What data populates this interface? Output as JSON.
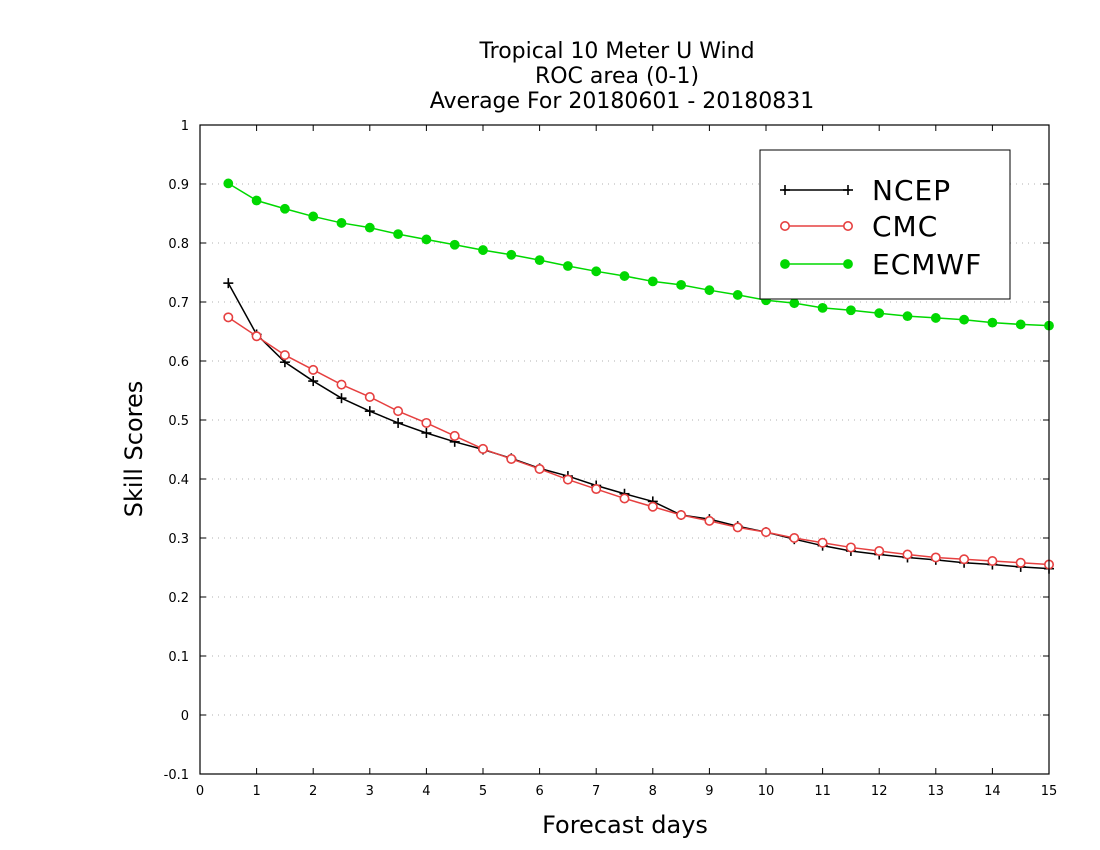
{
  "chart_data": {
    "type": "line",
    "title_lines": [
      "Tropical 10 Meter U Wind",
      "ROC area (0-1)",
      "Average For 20180601 - 20180831"
    ],
    "xlabel": "Forecast days",
    "ylabel": "Skill Scores",
    "xlim": [
      0,
      15
    ],
    "ylim": [
      -0.1,
      1
    ],
    "x_ticks": [
      0,
      1,
      2,
      3,
      4,
      5,
      6,
      7,
      8,
      9,
      10,
      11,
      12,
      13,
      14,
      15
    ],
    "y_ticks": [
      -0.1,
      0,
      0.1,
      0.2,
      0.3,
      0.4,
      0.5,
      0.6,
      0.7,
      0.8,
      0.9,
      1
    ],
    "x_tick_labels": [
      "0",
      "1",
      "2",
      "3",
      "4",
      "5",
      "6",
      "7",
      "8",
      "9",
      "10",
      "11",
      "12",
      "13",
      "14",
      "15"
    ],
    "y_tick_labels": [
      "-0.1",
      "0",
      "0.1",
      "0.2",
      "0.3",
      "0.4",
      "0.5",
      "0.6",
      "0.7",
      "0.8",
      "0.9",
      "1"
    ],
    "grid": true,
    "legend_position": "top-right",
    "x": [
      0.5,
      1,
      1.5,
      2,
      2.5,
      3,
      3.5,
      4,
      4.5,
      5,
      5.5,
      6,
      6.5,
      7,
      7.5,
      8,
      8.5,
      9,
      9.5,
      10,
      10.5,
      11,
      11.5,
      12,
      12.5,
      13,
      13.5,
      14,
      14.5,
      15
    ],
    "series": [
      {
        "name": "NCEP",
        "color": "#000000",
        "marker": "plus",
        "values": [
          0.732,
          0.645,
          0.598,
          0.566,
          0.537,
          0.515,
          0.495,
          0.478,
          0.463,
          0.45,
          0.435,
          0.418,
          0.405,
          0.389,
          0.375,
          0.362,
          0.339,
          0.332,
          0.32,
          0.31,
          0.298,
          0.287,
          0.278,
          0.272,
          0.267,
          0.263,
          0.258,
          0.255,
          0.251,
          0.248
        ]
      },
      {
        "name": "CMC",
        "color": "#e64040",
        "marker": "open-circle",
        "values": [
          0.674,
          0.642,
          0.61,
          0.585,
          0.56,
          0.539,
          0.515,
          0.495,
          0.473,
          0.451,
          0.434,
          0.417,
          0.399,
          0.383,
          0.367,
          0.353,
          0.339,
          0.329,
          0.318,
          0.31,
          0.3,
          0.292,
          0.284,
          0.278,
          0.272,
          0.267,
          0.264,
          0.261,
          0.258,
          0.255
        ]
      },
      {
        "name": "ECMWF",
        "color": "#00d800",
        "marker": "filled-circle",
        "values": [
          0.901,
          0.872,
          0.858,
          0.845,
          0.834,
          0.826,
          0.815,
          0.806,
          0.797,
          0.788,
          0.78,
          0.771,
          0.761,
          0.752,
          0.744,
          0.735,
          0.729,
          0.72,
          0.712,
          0.703,
          0.698,
          0.69,
          0.686,
          0.681,
          0.676,
          0.673,
          0.67,
          0.665,
          0.662,
          0.66
        ]
      }
    ]
  }
}
